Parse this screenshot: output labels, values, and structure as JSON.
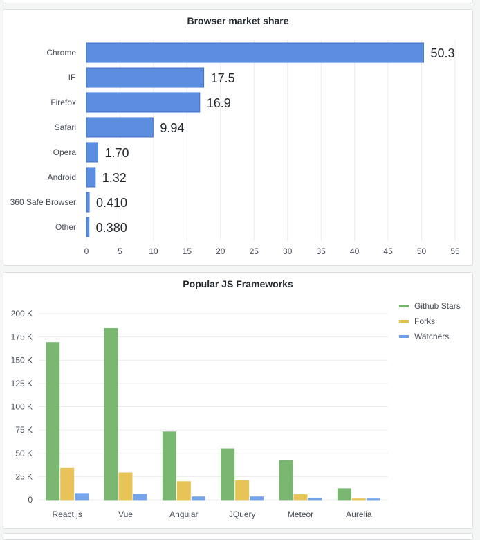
{
  "panels": {
    "browser": {
      "title": "Browser market share"
    },
    "frameworks": {
      "title": "Popular JS Frameworks"
    }
  },
  "chart_data": [
    {
      "type": "bar",
      "orientation": "horizontal",
      "title": "Browser market share",
      "categories": [
        "Chrome",
        "IE",
        "Firefox",
        "Safari",
        "Opera",
        "Android",
        "360 Safe Browser",
        "Other"
      ],
      "values": [
        50.3,
        17.5,
        16.9,
        9.94,
        1.7,
        1.32,
        0.41,
        0.38
      ],
      "value_labels": [
        "50.3",
        "17.5",
        "16.9",
        "9.94",
        "1.70",
        "1.32",
        "0.410",
        "0.380"
      ],
      "xlim": [
        0,
        55
      ],
      "x_ticks": [
        0,
        5,
        10,
        15,
        20,
        25,
        30,
        35,
        40,
        45,
        50,
        55
      ],
      "grid": true,
      "color": "#5b8ee0"
    },
    {
      "type": "bar",
      "orientation": "vertical",
      "title": "Popular JS Frameworks",
      "categories": [
        "React.js",
        "Vue",
        "Angular",
        "JQuery",
        "Meteor",
        "Aurelia"
      ],
      "series": [
        {
          "name": "Github Stars",
          "color": "#73b46a",
          "values": [
            169000,
            184000,
            73000,
            55000,
            42500,
            12000
          ]
        },
        {
          "name": "Forks",
          "color": "#e6c04f",
          "values": [
            34000,
            29000,
            19500,
            20500,
            5500,
            1000
          ]
        },
        {
          "name": "Watchers",
          "color": "#6ea0e9",
          "values": [
            6800,
            6000,
            3200,
            3200,
            1500,
            1000
          ]
        }
      ],
      "ylim": [
        0,
        200000
      ],
      "y_ticks": [
        0,
        25000,
        50000,
        75000,
        100000,
        125000,
        150000,
        175000,
        200000
      ],
      "y_tick_labels": [
        "0",
        "25 K",
        "50 K",
        "75 K",
        "100 K",
        "125 K",
        "150 K",
        "175 K",
        "200 K"
      ],
      "legend_position": "top-right",
      "grid": true
    }
  ]
}
